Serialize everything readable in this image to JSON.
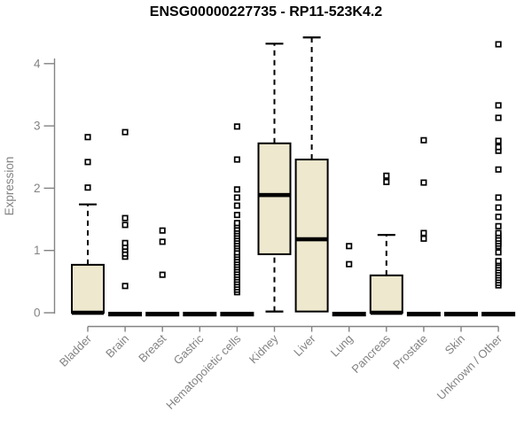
{
  "chart_data": {
    "type": "boxplot",
    "title": "ENSG00000227735 - RP11-523K4.2",
    "xlabel": "",
    "ylabel": "Expression",
    "ylim": [
      0,
      4.5
    ],
    "yticks": [
      0,
      1,
      2,
      3,
      4
    ],
    "grid": false,
    "legend": "none",
    "categories": [
      "Bladder",
      "Brain",
      "Breast",
      "Gastric",
      "Hematopoietic cells",
      "Kidney",
      "Liver",
      "Lung",
      "Pancreas",
      "Prostate",
      "Skin",
      "Unknown / Other"
    ],
    "boxes": [
      {
        "category": "Bladder",
        "q1": 0,
        "median": 0,
        "q3": 0.77,
        "whisker_low": 0,
        "whisker_high": 1.74,
        "outliers": [
          2.01,
          2.42,
          2.82
        ]
      },
      {
        "category": "Brain",
        "q1": 0,
        "median": 0,
        "q3": 0,
        "whisker_low": 0,
        "whisker_high": 0,
        "outliers": [
          0.43,
          0.9,
          0.95,
          1.01,
          1.06,
          1.12,
          1.41,
          1.52,
          2.9
        ]
      },
      {
        "category": "Breast",
        "q1": 0,
        "median": 0,
        "q3": 0,
        "whisker_low": 0,
        "whisker_high": 0,
        "outliers": [
          0.61,
          1.14,
          1.32
        ]
      },
      {
        "category": "Gastric",
        "q1": 0,
        "median": 0,
        "q3": 0,
        "whisker_low": 0,
        "whisker_high": 0,
        "outliers": []
      },
      {
        "category": "Hematopoietic cells",
        "q1": 0,
        "median": 0,
        "q3": 0,
        "whisker_low": 0,
        "whisker_high": 0,
        "outliers": [
          0.33,
          0.37,
          0.41,
          0.45,
          0.49,
          0.53,
          0.57,
          0.61,
          0.65,
          0.69,
          0.73,
          0.77,
          0.81,
          0.85,
          0.89,
          0.93,
          0.97,
          1.03,
          1.07,
          1.11,
          1.15,
          1.19,
          1.23,
          1.27,
          1.31,
          1.35,
          1.4,
          1.44,
          1.57,
          1.72,
          1.85,
          1.98,
          2.46,
          2.99
        ]
      },
      {
        "category": "Kidney",
        "q1": 0.94,
        "median": 1.89,
        "q3": 2.72,
        "whisker_low": 0.02,
        "whisker_high": 4.32,
        "outliers": []
      },
      {
        "category": "Liver",
        "q1": 0.02,
        "median": 1.18,
        "q3": 2.46,
        "whisker_low": 0.02,
        "whisker_high": 4.42,
        "outliers": []
      },
      {
        "category": "Lung",
        "q1": 0,
        "median": 0,
        "q3": 0,
        "whisker_low": 0,
        "whisker_high": 0,
        "outliers": [
          0.78,
          1.07
        ]
      },
      {
        "category": "Pancreas",
        "q1": 0,
        "median": 0,
        "q3": 0.6,
        "whisker_low": 0,
        "whisker_high": 1.25,
        "outliers": [
          2.1,
          2.2
        ]
      },
      {
        "category": "Prostate",
        "q1": 0,
        "median": 0,
        "q3": 0,
        "whisker_low": 0,
        "whisker_high": 0,
        "outliers": [
          1.19,
          1.28,
          2.09,
          2.77
        ]
      },
      {
        "category": "Skin",
        "q1": 0,
        "median": 0,
        "q3": 0,
        "whisker_low": 0,
        "whisker_high": 0,
        "outliers": []
      },
      {
        "category": "Unknown / Other",
        "q1": 0,
        "median": 0,
        "q3": 0,
        "whisker_low": 0,
        "whisker_high": 0,
        "outliers": [
          0.44,
          0.48,
          0.52,
          0.56,
          0.6,
          0.64,
          0.68,
          0.72,
          0.76,
          0.8,
          0.83,
          0.97,
          1.07,
          1.11,
          1.15,
          1.19,
          1.24,
          1.28,
          1.39,
          1.54,
          1.69,
          1.85,
          2.3,
          2.6,
          2.66,
          2.76,
          3.13,
          3.33,
          4.31
        ]
      }
    ]
  },
  "styles": {
    "box_fill": "#EDE8CE",
    "box_stroke": "#000000",
    "median_color": "#000000",
    "outlier_fill": "#FFFFFF",
    "outlier_stroke": "#000000",
    "axis_color": "#838383",
    "title_color": "#000000",
    "background": "#FFFFFF"
  }
}
